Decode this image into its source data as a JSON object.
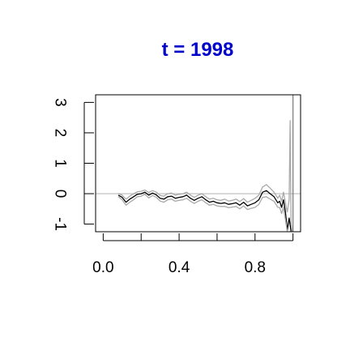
{
  "chart_data": {
    "type": "line",
    "title": "t = 1998",
    "xlabel": "",
    "ylabel": "",
    "xlim": [
      -0.04,
      1.04
    ],
    "ylim": [
      -1.25,
      3.25
    ],
    "x_ticks": [
      0.0,
      0.2,
      0.4,
      0.6,
      0.8,
      1.0
    ],
    "x_tick_labels": [
      "0.0",
      "",
      "0.4",
      "",
      "0.8",
      ""
    ],
    "y_ticks": [
      -1,
      0,
      1,
      2,
      3
    ],
    "y_tick_labels": [
      "-1",
      "0",
      "1",
      "2",
      "3"
    ],
    "reference_lines": {
      "horizontal": 0,
      "vertical": 1.0
    },
    "colors": {
      "title": "#0000cc",
      "line": "#000000",
      "band": "#aaaaaa",
      "reference": "#bbbbbb"
    },
    "series": [
      {
        "style": "estimate",
        "x": [
          0.08,
          0.1,
          0.12,
          0.14,
          0.16,
          0.18,
          0.2,
          0.22,
          0.24,
          0.26,
          0.28,
          0.3,
          0.32,
          0.34,
          0.36,
          0.38,
          0.4,
          0.42,
          0.44,
          0.46,
          0.48,
          0.5,
          0.52,
          0.54,
          0.56,
          0.58,
          0.6,
          0.62,
          0.64,
          0.66,
          0.68,
          0.7,
          0.72,
          0.74,
          0.76,
          0.78,
          0.8,
          0.82,
          0.84,
          0.86,
          0.88,
          0.9,
          0.92,
          0.93,
          0.94,
          0.95,
          0.96,
          0.97,
          0.98,
          0.99,
          1.0
        ],
        "y": [
          -0.05,
          -0.12,
          -0.28,
          -0.18,
          -0.1,
          -0.02,
          0.0,
          0.05,
          -0.05,
          0.02,
          -0.04,
          -0.15,
          -0.18,
          -0.1,
          -0.08,
          -0.15,
          -0.12,
          -0.1,
          -0.05,
          -0.15,
          -0.22,
          -0.15,
          -0.1,
          -0.2,
          -0.28,
          -0.25,
          -0.3,
          -0.32,
          -0.3,
          -0.35,
          -0.33,
          -0.3,
          -0.38,
          -0.28,
          -0.4,
          -0.35,
          -0.3,
          -0.2,
          0.05,
          0.1,
          0.0,
          -0.1,
          -0.3,
          -0.25,
          -0.45,
          -0.2,
          -0.6,
          -1.2,
          -0.8,
          -1.25,
          -1.25
        ]
      },
      {
        "style": "ci_upper",
        "x": [
          0.08,
          0.1,
          0.12,
          0.14,
          0.16,
          0.18,
          0.2,
          0.22,
          0.24,
          0.26,
          0.28,
          0.3,
          0.32,
          0.34,
          0.36,
          0.38,
          0.4,
          0.42,
          0.44,
          0.46,
          0.48,
          0.5,
          0.52,
          0.54,
          0.56,
          0.58,
          0.6,
          0.62,
          0.64,
          0.66,
          0.68,
          0.7,
          0.72,
          0.74,
          0.76,
          0.78,
          0.8,
          0.82,
          0.84,
          0.86,
          0.88,
          0.9,
          0.92,
          0.93,
          0.94,
          0.95,
          0.96,
          0.97,
          0.98,
          0.985,
          0.99,
          0.995,
          1.0
        ],
        "y": [
          0.0,
          -0.05,
          -0.18,
          -0.08,
          0.0,
          0.06,
          0.08,
          0.12,
          0.04,
          0.1,
          0.05,
          -0.06,
          -0.08,
          0.0,
          0.02,
          -0.05,
          -0.02,
          0.0,
          0.05,
          -0.05,
          -0.12,
          -0.05,
          0.0,
          -0.1,
          -0.18,
          -0.15,
          -0.2,
          -0.22,
          -0.18,
          -0.24,
          -0.22,
          -0.18,
          -0.26,
          -0.16,
          -0.28,
          -0.22,
          -0.15,
          -0.05,
          0.22,
          0.3,
          0.18,
          0.05,
          -0.15,
          -0.05,
          -0.25,
          0.05,
          -0.3,
          -0.6,
          -0.2,
          2.4,
          -1.0,
          -1.25,
          -1.25
        ]
      },
      {
        "style": "ci_lower",
        "x": [
          0.08,
          0.1,
          0.12,
          0.14,
          0.16,
          0.18,
          0.2,
          0.22,
          0.24,
          0.26,
          0.28,
          0.3,
          0.32,
          0.34,
          0.36,
          0.38,
          0.4,
          0.42,
          0.44,
          0.46,
          0.48,
          0.5,
          0.52,
          0.54,
          0.56,
          0.58,
          0.6,
          0.62,
          0.64,
          0.66,
          0.68,
          0.7,
          0.72,
          0.74,
          0.76,
          0.78,
          0.8,
          0.82,
          0.84,
          0.86,
          0.88,
          0.9,
          0.92,
          0.93,
          0.94,
          0.95,
          0.96,
          0.97,
          0.98,
          0.99,
          1.0
        ],
        "y": [
          -0.1,
          -0.2,
          -0.38,
          -0.28,
          -0.2,
          -0.1,
          -0.08,
          -0.02,
          -0.14,
          -0.06,
          -0.12,
          -0.24,
          -0.28,
          -0.2,
          -0.18,
          -0.25,
          -0.22,
          -0.2,
          -0.15,
          -0.25,
          -0.32,
          -0.25,
          -0.2,
          -0.3,
          -0.38,
          -0.35,
          -0.4,
          -0.42,
          -0.42,
          -0.46,
          -0.44,
          -0.42,
          -0.5,
          -0.4,
          -0.52,
          -0.48,
          -0.45,
          -0.35,
          -0.12,
          -0.1,
          -0.18,
          -0.25,
          -0.45,
          -0.45,
          -0.65,
          -0.45,
          -0.85,
          -1.25,
          -1.25,
          -1.25,
          -1.25
        ]
      }
    ]
  }
}
